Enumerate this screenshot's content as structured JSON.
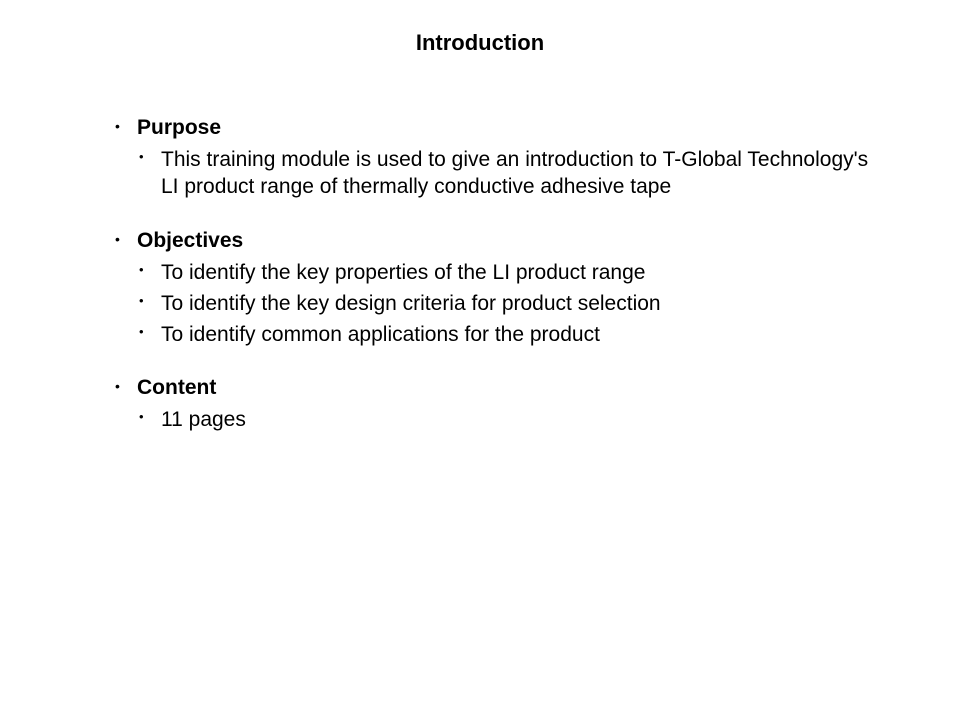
{
  "title": "Introduction",
  "sections": [
    {
      "heading": "Purpose",
      "items": [
        "This training module is used to give an introduction to T-Global Technology's LI product range of thermally conductive adhesive tape"
      ]
    },
    {
      "heading": "Objectives",
      "items": [
        "To identify the key properties of the LI product range",
        "To identify the key design criteria for product selection",
        "To identify common applications for the product"
      ]
    },
    {
      "heading": "Content",
      "items": [
        "11 pages"
      ]
    }
  ],
  "styling": {
    "background_color": "#ffffff",
    "text_color": "#000000",
    "title_fontsize": 22,
    "body_fontsize": 21,
    "font_family": "Arial"
  }
}
